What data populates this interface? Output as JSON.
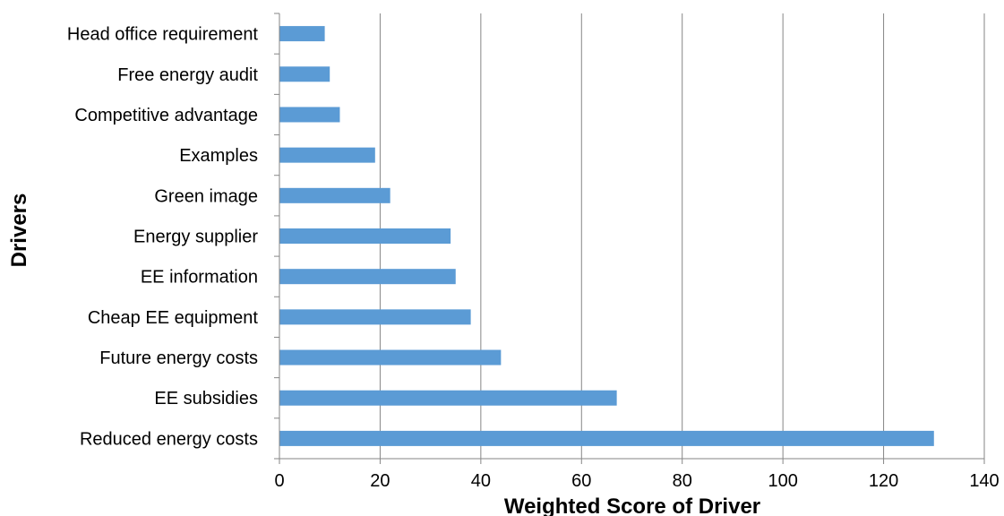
{
  "chart_data": {
    "type": "bar",
    "orientation": "horizontal",
    "categories": [
      "Reduced energy costs",
      "EE subsidies",
      "Future energy costs",
      "Cheap EE equipment",
      "EE information",
      "Energy supplier",
      "Green image",
      "Examples",
      "Competitive advantage",
      "Free energy audit",
      "Head office requirement"
    ],
    "values": [
      130,
      67,
      44,
      38,
      35,
      34,
      22,
      19,
      12,
      10,
      9
    ],
    "xlabel": "Weighted Score of Driver",
    "ylabel": "Drivers",
    "xlim": [
      0,
      140
    ],
    "xticks": [
      "0",
      "20",
      "40",
      "60",
      "80",
      "100",
      "120",
      "140"
    ],
    "grid": "vertical",
    "legend": "none",
    "colors": {
      "bar": "#5B9BD5",
      "grid": "#868686",
      "axis": "#868686"
    }
  }
}
